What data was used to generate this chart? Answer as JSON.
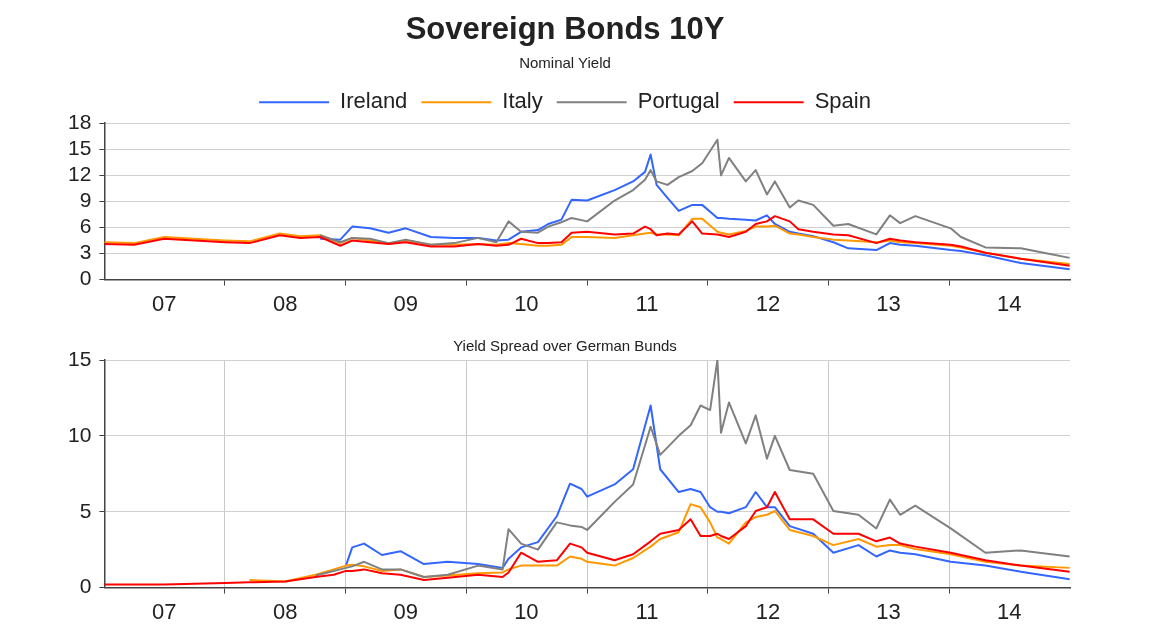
{
  "chart_data": [
    {
      "type": "line",
      "title": "Sovereign Bonds 10Y",
      "subtitle": "Nominal Yield",
      "x": [
        "2007-01-01",
        "2007-04-01",
        "2007-07-01",
        "2007-10-01",
        "2008-01-01",
        "2008-03-15",
        "2008-06-15",
        "2008-08-15",
        "2008-10-15",
        "2008-12-15",
        "2009-01-20",
        "2009-03-15",
        "2009-05-10",
        "2009-07-01",
        "2009-09-15",
        "2009-11-25",
        "2010-02-05",
        "2010-04-01",
        "2010-05-08",
        "2010-06-15",
        "2010-08-05",
        "2010-09-05",
        "2010-10-15",
        "2010-11-15",
        "2011-01-01",
        "2011-03-25",
        "2011-05-20",
        "2011-06-25",
        "2011-07-12",
        "2011-07-30",
        "2011-09-01",
        "2011-10-05",
        "2011-11-15",
        "2011-12-15",
        "2012-01-30",
        "2012-02-10",
        "2012-03-05",
        "2012-04-25",
        "2012-05-25",
        "2012-06-28",
        "2012-07-22",
        "2012-09-05",
        "2012-10-01",
        "2012-11-15",
        "2013-01-15",
        "2013-03-01",
        "2013-05-25",
        "2013-07-05",
        "2013-08-05",
        "2013-09-20",
        "2014-01-05",
        "2014-02-05",
        "2014-04-20",
        "2014-08-05",
        "2014-12-31"
      ],
      "series": [
        {
          "name": "Ireland",
          "color": "#3366ff",
          "values": [
            null,
            null,
            null,
            null,
            null,
            null,
            null,
            null,
            4.7,
            4.6,
            6.1,
            5.9,
            5.4,
            5.9,
            4.9,
            4.8,
            4.8,
            4.5,
            4.6,
            5.5,
            5.7,
            6.4,
            6.9,
            9.2,
            9.1,
            10.3,
            11.3,
            12.4,
            14.4,
            10.9,
            9.4,
            7.9,
            8.6,
            8.6,
            7.1,
            7.1,
            7.0,
            6.9,
            6.8,
            7.4,
            6.4,
            5.5,
            5.3,
            5.0,
            4.3,
            3.6,
            3.4,
            4.2,
            4.0,
            3.9,
            3.4,
            3.3,
            2.8,
            1.9,
            1.2
          ]
        },
        {
          "name": "Italy",
          "color": "#ff9900",
          "values": [
            4.3,
            4.2,
            4.9,
            4.7,
            4.5,
            4.4,
            5.3,
            5.0,
            5.1,
            4.2,
            4.8,
            4.5,
            4.1,
            4.5,
            4.0,
            4.0,
            4.1,
            4.0,
            4.2,
            4.1,
            3.9,
            3.9,
            4.0,
            4.9,
            4.9,
            4.8,
            5.1,
            5.3,
            5.4,
            5.2,
            5.2,
            5.1,
            7.0,
            7.0,
            5.5,
            5.4,
            5.2,
            5.6,
            6.1,
            6.1,
            6.2,
            5.3,
            5.2,
            4.9,
            4.6,
            4.5,
            4.3,
            4.5,
            4.3,
            4.2,
            3.9,
            3.7,
            3.1,
            2.4,
            1.8
          ]
        },
        {
          "name": "Portugal",
          "color": "#808080",
          "values": [
            null,
            null,
            null,
            null,
            null,
            null,
            null,
            null,
            5.1,
            4.3,
            4.8,
            4.7,
            4.2,
            4.6,
            4.0,
            4.2,
            4.8,
            4.3,
            6.7,
            5.5,
            5.4,
            6.1,
            6.6,
            7.1,
            6.7,
            9.1,
            10.3,
            11.5,
            12.6,
            11.3,
            10.9,
            11.8,
            12.5,
            13.4,
            16.1,
            12.0,
            14.0,
            11.3,
            12.6,
            9.8,
            11.3,
            8.3,
            9.1,
            8.6,
            6.2,
            6.4,
            5.2,
            7.4,
            6.5,
            7.3,
            5.9,
            4.9,
            3.7,
            3.6,
            2.5
          ]
        },
        {
          "name": "Spain",
          "color": "#ff0000",
          "values": [
            4.1,
            4.0,
            4.7,
            4.5,
            4.3,
            4.2,
            5.1,
            4.8,
            4.9,
            3.9,
            4.5,
            4.3,
            4.1,
            4.3,
            3.8,
            3.8,
            4.1,
            3.9,
            4.0,
            4.7,
            4.2,
            4.2,
            4.3,
            5.4,
            5.5,
            5.2,
            5.3,
            6.1,
            5.8,
            5.1,
            5.3,
            5.2,
            6.7,
            5.3,
            5.2,
            5.1,
            4.9,
            5.5,
            6.4,
            6.7,
            7.3,
            6.7,
            5.8,
            5.5,
            5.2,
            5.1,
            4.2,
            4.7,
            4.5,
            4.3,
            4.0,
            3.8,
            3.1,
            2.4,
            1.6
          ]
        }
      ],
      "xlim": [
        "2007-01-01",
        "2015-01-01"
      ],
      "xticks": [
        {
          "value": "2007-07-01",
          "label": "07"
        },
        {
          "value": "2008-01-01",
          "label": null
        },
        {
          "value": "2008-07-01",
          "label": "08"
        },
        {
          "value": "2009-01-01",
          "label": null
        },
        {
          "value": "2009-07-01",
          "label": "09"
        },
        {
          "value": "2010-01-01",
          "label": null
        },
        {
          "value": "2010-07-01",
          "label": "10"
        },
        {
          "value": "2011-01-01",
          "label": null
        },
        {
          "value": "2011-07-01",
          "label": "11"
        },
        {
          "value": "2012-01-01",
          "label": null
        },
        {
          "value": "2012-07-01",
          "label": "12"
        },
        {
          "value": "2013-01-01",
          "label": null
        },
        {
          "value": "2013-07-01",
          "label": "13"
        },
        {
          "value": "2014-01-01",
          "label": null
        },
        {
          "value": "2014-07-01",
          "label": "14"
        }
      ],
      "ylim": [
        0,
        18
      ],
      "yticks": [
        0,
        3,
        6,
        9,
        12,
        15,
        18
      ],
      "grid": "y",
      "legend": "top",
      "marker": "none",
      "line_style": "solid"
    },
    {
      "type": "line",
      "subtitle": "Yield Spread over German Bunds",
      "x": [
        "2007-01-01",
        "2007-07-01",
        "2008-01-01",
        "2008-03-15",
        "2008-07-01",
        "2008-10-01",
        "2008-11-25",
        "2009-01-01",
        "2009-01-20",
        "2009-02-25",
        "2009-04-20",
        "2009-06-15",
        "2009-08-25",
        "2009-11-05",
        "2010-02-05",
        "2010-04-20",
        "2010-05-08",
        "2010-06-15",
        "2010-08-05",
        "2010-10-01",
        "2010-11-10",
        "2010-12-15",
        "2011-01-01",
        "2011-03-25",
        "2011-05-20",
        "2011-07-12",
        "2011-08-10",
        "2011-10-05",
        "2011-11-10",
        "2011-12-10",
        "2012-01-08",
        "2012-01-30",
        "2012-02-10",
        "2012-03-05",
        "2012-04-25",
        "2012-05-25",
        "2012-06-28",
        "2012-07-22",
        "2012-09-05",
        "2012-11-15",
        "2013-01-15",
        "2013-04-01",
        "2013-05-25",
        "2013-07-05",
        "2013-08-05",
        "2013-09-20",
        "2014-01-05",
        "2014-04-20",
        "2014-08-05",
        "2014-12-31"
      ],
      "series": [
        {
          "color": "#3366ff",
          "values": [
            null,
            null,
            null,
            null,
            null,
            null,
            null,
            1.45,
            2.65,
            2.9,
            2.15,
            2.4,
            1.55,
            1.7,
            1.55,
            1.3,
            1.9,
            2.65,
            3.0,
            4.7,
            6.85,
            6.5,
            6.0,
            6.8,
            7.8,
            12.0,
            7.8,
            6.3,
            6.5,
            6.3,
            5.3,
            5.0,
            5.0,
            4.9,
            5.3,
            6.3,
            5.3,
            5.3,
            4.05,
            3.55,
            2.3,
            2.8,
            2.05,
            2.45,
            2.3,
            2.2,
            1.7,
            1.45,
            1.05,
            0.55
          ]
        },
        {
          "color": "#ff9900",
          "values": [
            null,
            null,
            null,
            0.5,
            0.4,
            0.85,
            1.2,
            1.45,
            1.5,
            1.4,
            1.1,
            1.2,
            0.7,
            0.8,
            0.95,
            1.0,
            1.2,
            1.45,
            1.45,
            1.45,
            2.05,
            1.9,
            1.7,
            1.45,
            1.95,
            2.7,
            3.2,
            3.65,
            5.5,
            5.3,
            4.3,
            3.3,
            3.2,
            2.9,
            4.3,
            4.65,
            4.8,
            5.05,
            3.8,
            3.4,
            2.8,
            3.2,
            2.7,
            2.8,
            2.8,
            2.55,
            2.2,
            1.7,
            1.45,
            1.3
          ]
        },
        {
          "color": "#808080",
          "values": [
            null,
            null,
            null,
            null,
            null,
            0.8,
            1.1,
            1.3,
            1.4,
            1.7,
            1.2,
            1.2,
            0.7,
            0.85,
            1.45,
            1.2,
            3.85,
            2.9,
            2.5,
            4.3,
            4.1,
            4.0,
            3.8,
            5.65,
            6.8,
            10.6,
            8.75,
            10.0,
            10.7,
            12.0,
            11.7,
            15.0,
            10.2,
            12.2,
            9.5,
            11.35,
            8.5,
            10.0,
            7.75,
            7.5,
            5.05,
            4.8,
            3.9,
            5.8,
            4.8,
            5.4,
            3.9,
            2.3,
            2.45,
            2.05
          ]
        },
        {
          "color": "#ff0000",
          "values": [
            0.2,
            0.2,
            0.3,
            0.35,
            0.4,
            0.7,
            0.85,
            1.1,
            1.1,
            1.2,
            0.95,
            0.85,
            0.5,
            0.65,
            0.85,
            0.7,
            1.0,
            2.3,
            1.7,
            1.8,
            2.9,
            2.65,
            2.3,
            1.8,
            2.2,
            3.05,
            3.55,
            3.8,
            4.5,
            3.4,
            3.4,
            3.55,
            3.4,
            3.2,
            4.05,
            5.05,
            5.3,
            6.3,
            4.5,
            4.5,
            3.55,
            3.55,
            3.05,
            3.3,
            2.9,
            2.7,
            2.3,
            1.8,
            1.45,
            1.05
          ]
        }
      ],
      "xlim": [
        "2007-01-01",
        "2015-01-01"
      ],
      "xticks": [
        {
          "value": "2007-07-01",
          "label": "07"
        },
        {
          "value": "2008-01-01",
          "label": null
        },
        {
          "value": "2008-07-01",
          "label": "08"
        },
        {
          "value": "2009-01-01",
          "label": null
        },
        {
          "value": "2009-07-01",
          "label": "09"
        },
        {
          "value": "2010-01-01",
          "label": null
        },
        {
          "value": "2010-07-01",
          "label": "10"
        },
        {
          "value": "2011-01-01",
          "label": null
        },
        {
          "value": "2011-07-01",
          "label": "11"
        },
        {
          "value": "2012-01-01",
          "label": null
        },
        {
          "value": "2012-07-01",
          "label": "12"
        },
        {
          "value": "2013-01-01",
          "label": null
        },
        {
          "value": "2013-07-01",
          "label": "13"
        },
        {
          "value": "2014-01-01",
          "label": null
        },
        {
          "value": "2014-07-01",
          "label": "14"
        }
      ],
      "ylim": [
        0,
        15
      ],
      "yticks": [
        0,
        5,
        10,
        15
      ],
      "grid": true,
      "marker": "none",
      "line_style": "solid"
    }
  ]
}
